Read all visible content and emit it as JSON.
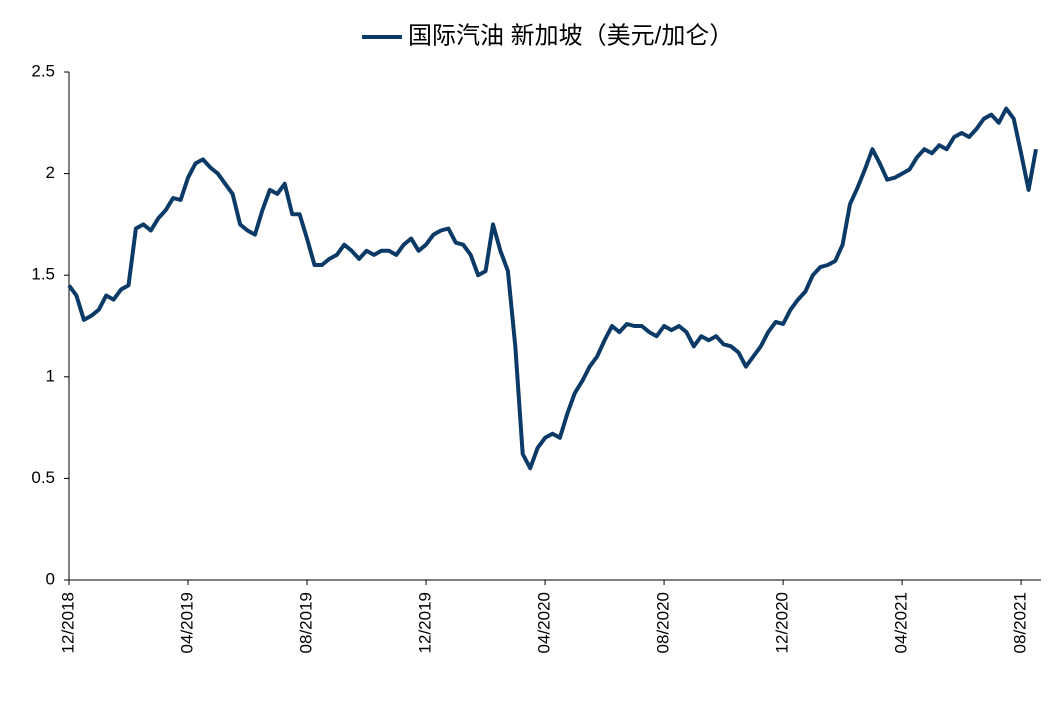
{
  "chart_data": {
    "type": "line",
    "categories": [
      "12/2018",
      null,
      null,
      null,
      null,
      null,
      null,
      null,
      null,
      null,
      null,
      null,
      null,
      null,
      null,
      null,
      "04/2019",
      null,
      null,
      null,
      null,
      null,
      null,
      null,
      null,
      null,
      null,
      null,
      null,
      null,
      null,
      null,
      "08/2019",
      null,
      null,
      null,
      null,
      null,
      null,
      null,
      null,
      null,
      null,
      null,
      null,
      null,
      null,
      null,
      "12/2019",
      null,
      null,
      null,
      null,
      null,
      null,
      null,
      null,
      null,
      null,
      null,
      null,
      null,
      null,
      null,
      "04/2020",
      null,
      null,
      null,
      null,
      null,
      null,
      null,
      null,
      null,
      null,
      null,
      null,
      null,
      null,
      null,
      "08/2020",
      null,
      null,
      null,
      null,
      null,
      null,
      null,
      null,
      null,
      null,
      null,
      null,
      null,
      null,
      null,
      "12/2020",
      null,
      null,
      null,
      null,
      null,
      null,
      null,
      null,
      null,
      null,
      null,
      null,
      null,
      null,
      null,
      "04/2021",
      null,
      null,
      null,
      null,
      null,
      null,
      null,
      null,
      null,
      null,
      null,
      null,
      null,
      null,
      null,
      "08/2021",
      null,
      null
    ],
    "series": [
      {
        "name": "国际汽油 新加坡（美元/加仑）",
        "color": "#0b3a66",
        "values": [
          1.45,
          1.4,
          1.28,
          1.3,
          1.33,
          1.4,
          1.38,
          1.43,
          1.45,
          1.73,
          1.75,
          1.72,
          1.78,
          1.82,
          1.88,
          1.87,
          1.98,
          2.05,
          2.07,
          2.03,
          2.0,
          1.95,
          1.9,
          1.75,
          1.72,
          1.7,
          1.82,
          1.92,
          1.9,
          1.95,
          1.8,
          1.8,
          1.68,
          1.55,
          1.55,
          1.58,
          1.6,
          1.65,
          1.62,
          1.58,
          1.62,
          1.6,
          1.62,
          1.62,
          1.6,
          1.65,
          1.68,
          1.62,
          1.65,
          1.7,
          1.72,
          1.73,
          1.66,
          1.65,
          1.6,
          1.5,
          1.52,
          1.75,
          1.62,
          1.52,
          1.15,
          0.62,
          0.55,
          0.65,
          0.7,
          0.72,
          0.7,
          0.82,
          0.92,
          0.98,
          1.05,
          1.1,
          1.18,
          1.25,
          1.22,
          1.26,
          1.25,
          1.25,
          1.22,
          1.2,
          1.25,
          1.23,
          1.25,
          1.22,
          1.15,
          1.2,
          1.18,
          1.2,
          1.16,
          1.15,
          1.12,
          1.05,
          1.1,
          1.15,
          1.22,
          1.27,
          1.26,
          1.33,
          1.38,
          1.42,
          1.5,
          1.54,
          1.55,
          1.57,
          1.65,
          1.85,
          1.93,
          2.02,
          2.12,
          2.05,
          1.97,
          1.98,
          2.0,
          2.02,
          2.08,
          2.12,
          2.1,
          2.14,
          2.12,
          2.18,
          2.2,
          2.18,
          2.22,
          2.27,
          2.29,
          2.25,
          2.32,
          2.27,
          2.1,
          1.92,
          2.12
        ]
      }
    ],
    "ylim": [
      0,
      2.5
    ],
    "yticks": [
      0,
      0.5,
      1,
      1.5,
      2,
      2.5
    ],
    "legend": "top"
  }
}
